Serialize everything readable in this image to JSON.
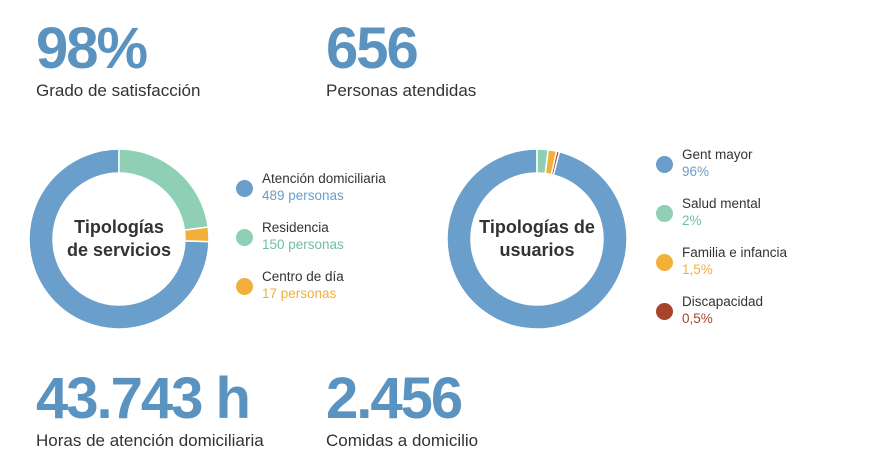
{
  "stats": {
    "satisfaction": {
      "value": "98%",
      "label": "Grado de satisfacción"
    },
    "people": {
      "value": "656",
      "label": "Personas atendidas"
    },
    "hours": {
      "value": "43.743 h",
      "label": "Horas de atención domiciliaria"
    },
    "meals": {
      "value": "2.456",
      "label": "Comidas a domicilio"
    }
  },
  "chart_data": [
    {
      "type": "pie",
      "title": "Tipologías\nde servicios",
      "legend_position": "right",
      "series": [
        {
          "name": "Atención domiciliaria",
          "value": 489,
          "label": "489 personas",
          "color": "#6a9ecb"
        },
        {
          "name": "Residencia",
          "value": 150,
          "label": "150 personas",
          "color": "#8ecfb6"
        },
        {
          "name": "Centro de día",
          "value": 17,
          "label": "17 personas",
          "color": "#f2b03a"
        }
      ]
    },
    {
      "type": "pie",
      "title": "Tipologías de\nusuarios",
      "legend_position": "right",
      "series": [
        {
          "name": "Gent mayor",
          "value": 96,
          "label": "96%",
          "color": "#6a9ecb"
        },
        {
          "name": "Salud mental",
          "value": 2,
          "label": "2%",
          "color": "#8ecfb6"
        },
        {
          "name": "Familia e infancia",
          "value": 1.5,
          "label": "1,5%",
          "color": "#f2b03a"
        },
        {
          "name": "Discapacidad",
          "value": 0.5,
          "label": "0,5%",
          "color": "#a8432c"
        }
      ]
    }
  ]
}
